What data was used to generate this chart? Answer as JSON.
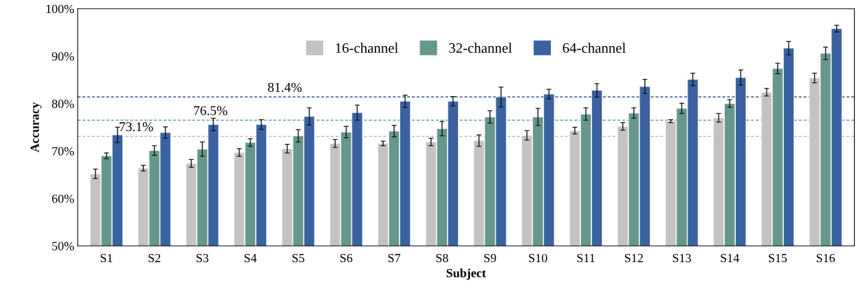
{
  "chart_data": {
    "type": "bar",
    "xlabel": "Subject",
    "ylabel": "Accuracy",
    "categories": [
      "S1",
      "S2",
      "S3",
      "S4",
      "S5",
      "S6",
      "S7",
      "S8",
      "S9",
      "S10",
      "S11",
      "S12",
      "S13",
      "S14",
      "S15",
      "S16"
    ],
    "series": [
      {
        "name": "16-channel",
        "color": "#c3c3c3",
        "values": [
          65.2,
          66.4,
          67.4,
          69.7,
          70.5,
          71.6,
          71.6,
          71.9,
          72.2,
          73.3,
          74.3,
          75.2,
          76.3,
          77.0,
          82.4,
          85.4
        ],
        "errors": [
          1.0,
          0.6,
          0.8,
          0.8,
          0.9,
          0.8,
          0.5,
          0.8,
          1.2,
          1.0,
          0.7,
          0.8,
          0.3,
          0.9,
          0.8,
          1.0
        ]
      },
      {
        "name": "32-channel",
        "color": "#66968c",
        "values": [
          69.0,
          70.1,
          70.4,
          71.8,
          73.2,
          74.0,
          74.2,
          74.7,
          77.2,
          77.2,
          77.8,
          78.0,
          79.0,
          80.0,
          87.4,
          90.6
        ],
        "errors": [
          0.6,
          1.0,
          1.5,
          0.8,
          1.3,
          1.2,
          1.2,
          1.5,
          1.3,
          1.8,
          1.3,
          1.1,
          1.1,
          0.8,
          1.1,
          1.3
        ]
      },
      {
        "name": "64-channel",
        "color": "#3a62a0",
        "values": [
          73.4,
          73.9,
          75.6,
          75.6,
          77.3,
          78.1,
          80.5,
          80.5,
          81.4,
          82.0,
          82.8,
          83.6,
          85.1,
          85.5,
          91.7,
          95.8
        ],
        "errors": [
          1.6,
          1.2,
          1.3,
          1.0,
          1.8,
          1.6,
          1.3,
          1.0,
          2.1,
          1.0,
          1.4,
          1.5,
          1.3,
          1.6,
          1.4,
          0.7
        ]
      }
    ],
    "ylim": [
      50,
      100
    ],
    "yticks": [
      {
        "value": 50,
        "label": "50%"
      },
      {
        "value": 60,
        "label": "60%"
      },
      {
        "value": 70,
        "label": "70%"
      },
      {
        "value": 80,
        "label": "80%"
      },
      {
        "value": 90,
        "label": "90%"
      },
      {
        "value": 100,
        "label": "100%"
      }
    ],
    "ref_lines": [
      {
        "axis": "y",
        "value": 73.1,
        "label": "73.1%",
        "color": "#b0b0b0",
        "line_style": "dashed"
      },
      {
        "axis": "y",
        "value": 76.5,
        "label": "76.5%",
        "color": "#4f8a80",
        "line_style": "dashed"
      },
      {
        "axis": "y",
        "value": 81.4,
        "label": "81.4%",
        "color": "#2f5590",
        "line_style": "dashed"
      }
    ],
    "grid": false,
    "legend": "top"
  }
}
